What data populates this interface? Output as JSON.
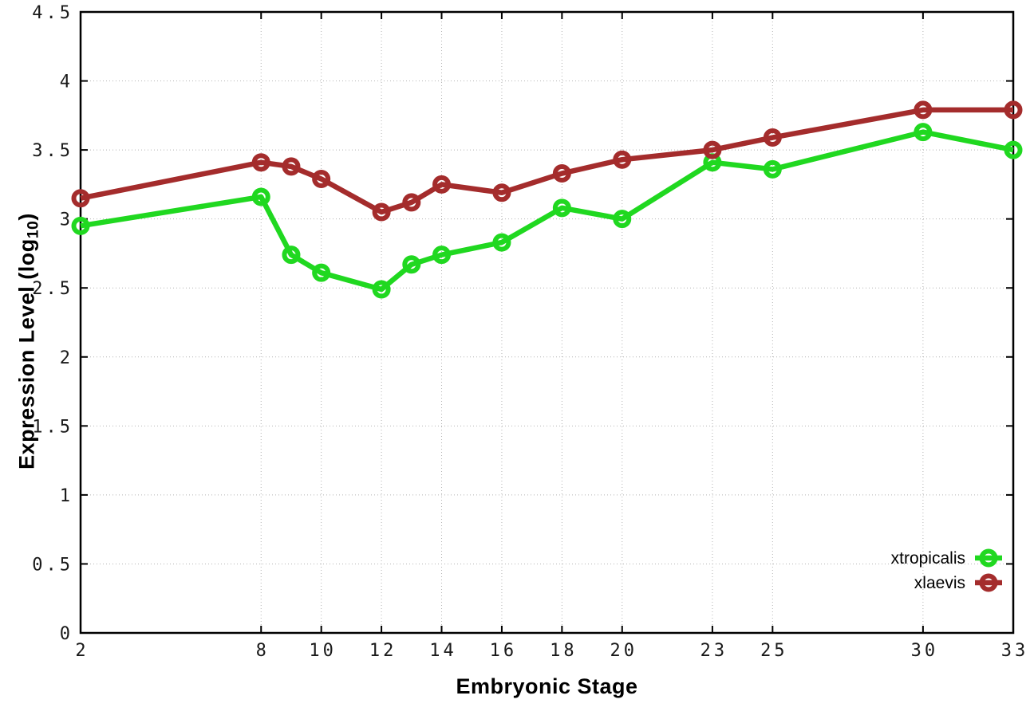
{
  "chart_data": {
    "type": "line",
    "title": "",
    "xlabel": "Embryonic Stage",
    "ylabel": "Expression Level (log10)",
    "ylabel_parts": {
      "prefix": "Expression Level (log",
      "subscript": "10",
      "suffix": ")"
    },
    "x": [
      2,
      8,
      9,
      10,
      12,
      13,
      14,
      16,
      18,
      20,
      23,
      25,
      30,
      33
    ],
    "x_tick_values": [
      2,
      8,
      10,
      12,
      14,
      16,
      18,
      20,
      23,
      25,
      30,
      33
    ],
    "x_tick_labels": [
      "2",
      "8",
      "10",
      "12",
      "14",
      "16",
      "18",
      "20",
      "23",
      "25",
      "30",
      "33"
    ],
    "y_tick_values": [
      0,
      0.5,
      1,
      1.5,
      2,
      2.5,
      3,
      3.5,
      4,
      4.5
    ],
    "y_tick_labels": [
      "0",
      "0.5",
      "1",
      "1.5",
      "2",
      "2.5",
      "3",
      "3.5",
      "4",
      "4.5"
    ],
    "xlim": [
      2,
      33
    ],
    "ylim": [
      0,
      4.5
    ],
    "grid": true,
    "legend_position": "inside-bottom-right",
    "series": [
      {
        "name": "xtropicalis",
        "color": "#20d820",
        "marker": "open-circle",
        "values": [
          2.95,
          3.16,
          2.74,
          2.61,
          2.49,
          2.67,
          2.74,
          2.83,
          3.08,
          3.0,
          3.41,
          3.36,
          3.63,
          3.5
        ]
      },
      {
        "name": "xlaevis",
        "color": "#a42c2c",
        "marker": "open-circle",
        "values": [
          3.15,
          3.41,
          3.38,
          3.29,
          3.05,
          3.12,
          3.25,
          3.19,
          3.33,
          3.43,
          3.5,
          3.59,
          3.79,
          3.79
        ]
      }
    ]
  },
  "colors": {
    "background": "#ffffff",
    "axis": "#000000",
    "grid": "#b4b4b4",
    "tick_text": "#1a1a1a"
  }
}
